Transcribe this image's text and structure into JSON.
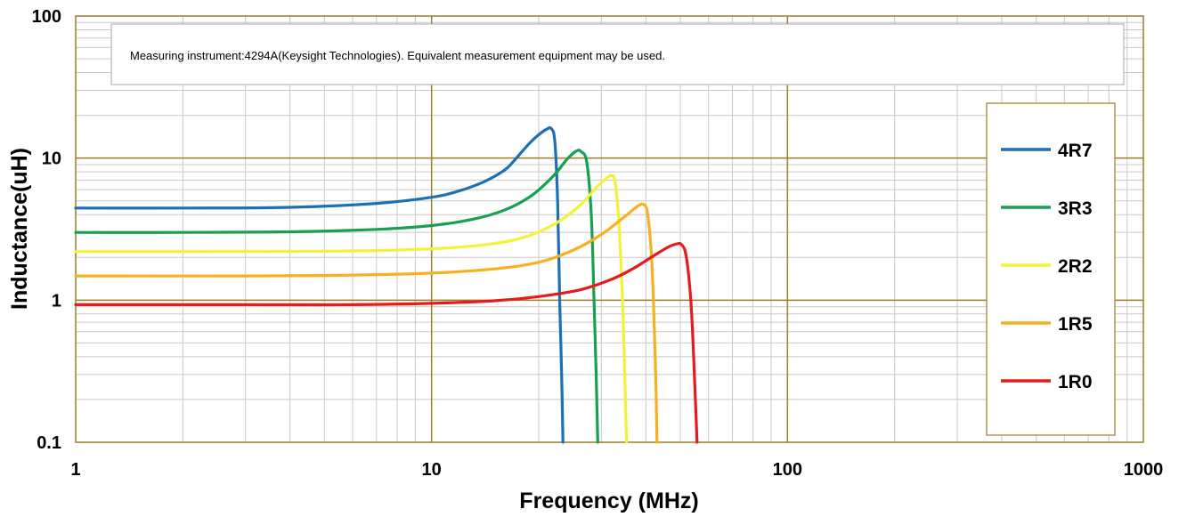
{
  "chart_data": {
    "type": "line",
    "xscale": "log",
    "yscale": "log",
    "xlim": [
      1,
      1000
    ],
    "ylim": [
      0.1,
      100
    ],
    "xlabel": "Frequency (MHz)",
    "ylabel": "Inductance(uH)",
    "x_ticks": [
      "1",
      "10",
      "100",
      "1000"
    ],
    "y_ticks": [
      "100",
      "10",
      "1",
      "0.1"
    ],
    "grid": true,
    "legend_position": "right",
    "annotation": "Measuring instrument:4294A(Keysight Technologies). Equivalent measurement equipment may be used.",
    "colors": {
      "major_grid": "#9b7d2c",
      "minor_grid": "#c8c8c8",
      "frame": "#9b7d2c",
      "legend_border": "#9b7d2c",
      "note_border": "#b4b4b4"
    },
    "series": [
      {
        "name": "4R7",
        "color": "#1f6fb4",
        "x": [
          1,
          2,
          4,
          7,
          10,
          12,
          14,
          16,
          17,
          18,
          19,
          20,
          21,
          21.7,
          22.2,
          22.6,
          22.9,
          23.2,
          23.4
        ],
        "y": [
          4.45,
          4.45,
          4.5,
          4.8,
          5.3,
          5.9,
          6.8,
          8.2,
          9.5,
          11.2,
          13.0,
          14.6,
          15.9,
          16.1,
          13.0,
          5.0,
          1.0,
          0.3,
          0.1
        ]
      },
      {
        "name": "3R3",
        "color": "#17a050",
        "x": [
          1,
          2,
          4,
          7,
          10,
          13,
          16,
          19,
          22,
          24,
          25.5,
          26.3,
          27.3,
          28.1,
          28.6,
          29.0,
          29.3
        ],
        "y": [
          3.0,
          3.0,
          3.03,
          3.15,
          3.35,
          3.7,
          4.3,
          5.4,
          7.5,
          9.8,
          11.2,
          11.1,
          9.3,
          4.0,
          1.0,
          0.3,
          0.1
        ]
      },
      {
        "name": "2R2",
        "color": "#f2f238",
        "x": [
          1,
          3,
          6,
          10,
          14,
          18,
          22,
          26,
          29,
          31,
          32,
          32.8,
          33.6,
          34.4,
          34.9,
          35.3
        ],
        "y": [
          2.2,
          2.2,
          2.22,
          2.3,
          2.45,
          2.75,
          3.4,
          4.6,
          6.2,
          7.2,
          7.5,
          6.8,
          3.5,
          1.0,
          0.3,
          0.1
        ]
      },
      {
        "name": "1R5",
        "color": "#f5b120",
        "x": [
          1,
          3,
          6,
          10,
          15,
          20,
          25,
          30,
          35,
          38,
          39.5,
          40.5,
          41.5,
          42.2,
          42.7,
          43.0
        ],
        "y": [
          1.48,
          1.48,
          1.5,
          1.55,
          1.66,
          1.85,
          2.25,
          2.9,
          3.9,
          4.6,
          4.7,
          4.0,
          2.0,
          0.7,
          0.25,
          0.1
        ]
      },
      {
        "name": "1R0",
        "color": "#e41c1c",
        "x": [
          1,
          3,
          6,
          10,
          15,
          20,
          26,
          32,
          37,
          42,
          46,
          48.5,
          50.5,
          52,
          53.5,
          54.5,
          55.2,
          55.7
        ],
        "y": [
          0.93,
          0.93,
          0.93,
          0.95,
          0.99,
          1.06,
          1.18,
          1.4,
          1.68,
          2.05,
          2.35,
          2.48,
          2.45,
          2.0,
          1.0,
          0.4,
          0.18,
          0.1
        ]
      }
    ]
  }
}
